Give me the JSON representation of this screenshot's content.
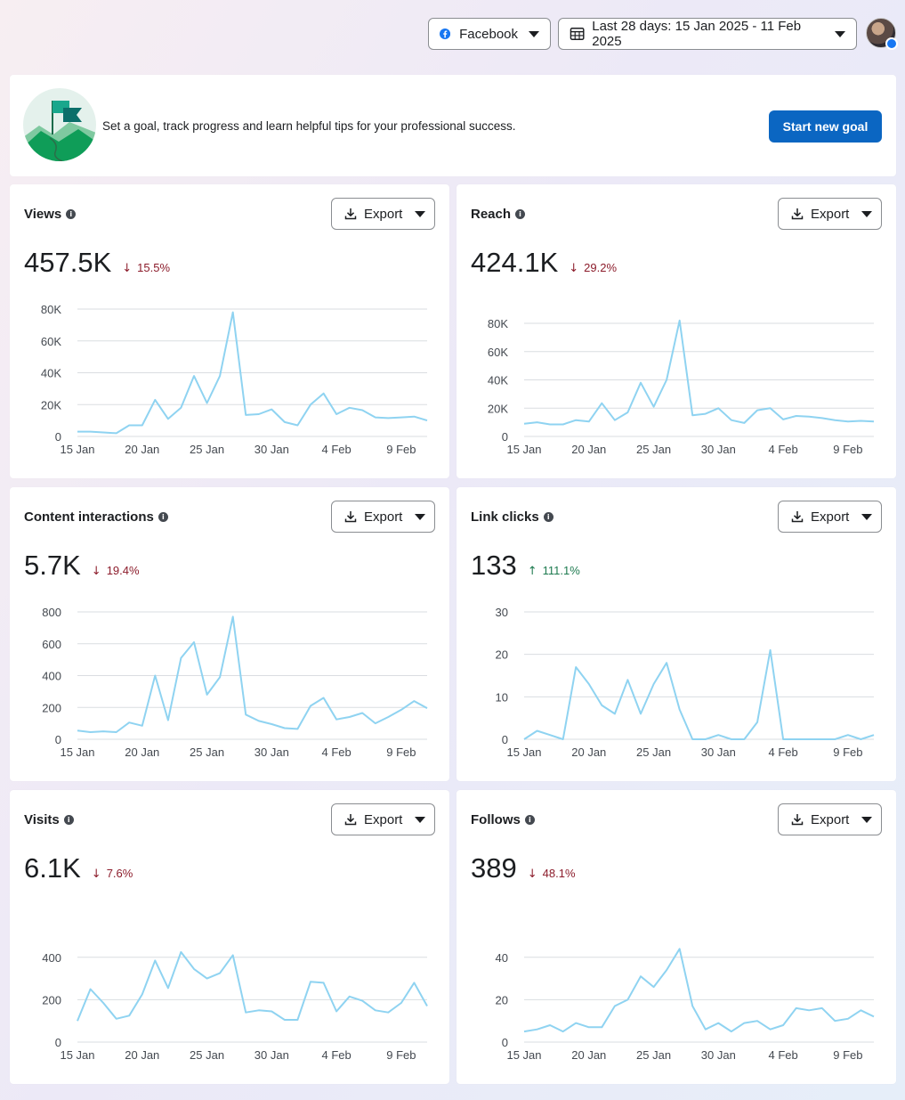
{
  "header": {
    "platform_label": "Facebook",
    "date_range_label": "Last 28 days: 15 Jan 2025 - 11 Feb 2025"
  },
  "goal": {
    "text": "Set a goal, track progress and learn helpful tips for your professional success.",
    "button_label": "Start new goal"
  },
  "export_label": "Export",
  "colors": {
    "line": "#8fd3f1",
    "grid": "#dadde1",
    "accent": "#0b66c2",
    "down": "#8c1c2b",
    "up": "#1d7a4f"
  },
  "metrics": [
    {
      "key": "views",
      "title": "Views",
      "value": "457.5K",
      "delta": "15.5%",
      "direction": "down"
    },
    {
      "key": "reach",
      "title": "Reach",
      "value": "424.1K",
      "delta": "29.2%",
      "direction": "down"
    },
    {
      "key": "interactions",
      "title": "Content interactions",
      "value": "5.7K",
      "delta": "19.4%",
      "direction": "down"
    },
    {
      "key": "link_clicks",
      "title": "Link clicks",
      "value": "133",
      "delta": "111.1%",
      "direction": "up"
    },
    {
      "key": "visits",
      "title": "Visits",
      "value": "6.1K",
      "delta": "7.6%",
      "direction": "down"
    },
    {
      "key": "follows",
      "title": "Follows",
      "value": "389",
      "delta": "48.1%",
      "direction": "down"
    }
  ],
  "chart_data": [
    {
      "type": "line",
      "title": "Views",
      "x_ticks": [
        "15 Jan",
        "20 Jan",
        "25 Jan",
        "30 Jan",
        "4 Feb",
        "9 Feb"
      ],
      "y_ticks": [
        "0",
        "20K",
        "40K",
        "60K",
        "80K"
      ],
      "ylim": [
        0,
        80000
      ],
      "values": [
        3000,
        3000,
        2500,
        2000,
        7000,
        7000,
        23000,
        11000,
        18000,
        38000,
        21000,
        38000,
        78000,
        13500,
        14000,
        17000,
        9000,
        7000,
        20000,
        27000,
        14000,
        18000,
        16500,
        12000,
        11500,
        12000,
        12500,
        10000
      ]
    },
    {
      "type": "line",
      "title": "Reach",
      "x_ticks": [
        "15 Jan",
        "20 Jan",
        "25 Jan",
        "30 Jan",
        "4 Feb",
        "9 Feb"
      ],
      "y_ticks": [
        "0",
        "20K",
        "40K",
        "60K",
        "80K"
      ],
      "ylim": [
        0,
        80000
      ],
      "values": [
        9000,
        10000,
        8500,
        8500,
        11500,
        10500,
        23500,
        11500,
        17000,
        38000,
        21000,
        40000,
        82000,
        15000,
        16000,
        20000,
        11500,
        9500,
        18500,
        20000,
        12000,
        14500,
        14000,
        13000,
        11500,
        10500,
        11000,
        10500
      ]
    },
    {
      "type": "line",
      "title": "Content interactions",
      "x_ticks": [
        "15 Jan",
        "20 Jan",
        "25 Jan",
        "30 Jan",
        "4 Feb",
        "9 Feb"
      ],
      "y_ticks": [
        "0",
        "200",
        "400",
        "600",
        "800"
      ],
      "ylim": [
        0,
        800
      ],
      "values": [
        55,
        45,
        50,
        45,
        105,
        85,
        400,
        120,
        510,
        610,
        280,
        390,
        770,
        155,
        115,
        95,
        70,
        65,
        210,
        260,
        125,
        140,
        165,
        100,
        140,
        185,
        240,
        195
      ]
    },
    {
      "type": "line",
      "title": "Link clicks",
      "x_ticks": [
        "15 Jan",
        "20 Jan",
        "25 Jan",
        "30 Jan",
        "4 Feb",
        "9 Feb"
      ],
      "y_ticks": [
        "0",
        "10",
        "20",
        "30"
      ],
      "ylim": [
        0,
        30
      ],
      "values": [
        0,
        2,
        1,
        0,
        17,
        13,
        8,
        6,
        14,
        6,
        13,
        18,
        7,
        0,
        0,
        1,
        0,
        0,
        4,
        21,
        0,
        0,
        0,
        0,
        0,
        1,
        0,
        1
      ]
    },
    {
      "type": "line",
      "title": "Visits",
      "x_ticks": [
        "15 Jan",
        "20 Jan",
        "25 Jan",
        "30 Jan",
        "4 Feb",
        "9 Feb"
      ],
      "y_ticks": [
        "0",
        "200",
        "400"
      ],
      "ylim": [
        0,
        500
      ],
      "values": [
        100,
        250,
        185,
        110,
        125,
        225,
        385,
        255,
        425,
        345,
        300,
        325,
        410,
        140,
        150,
        145,
        105,
        105,
        285,
        280,
        145,
        215,
        195,
        150,
        140,
        185,
        280,
        170
      ]
    },
    {
      "type": "line",
      "title": "Follows",
      "x_ticks": [
        "15 Jan",
        "20 Jan",
        "25 Jan",
        "30 Jan",
        "4 Feb",
        "9 Feb"
      ],
      "y_ticks": [
        "0",
        "20",
        "40"
      ],
      "ylim": [
        0,
        50
      ],
      "values": [
        5,
        6,
        8,
        5,
        9,
        7,
        7,
        17,
        20,
        31,
        26,
        34,
        44,
        17,
        6,
        9,
        5,
        9,
        10,
        6,
        8,
        16,
        15,
        16,
        10,
        11,
        15,
        12
      ]
    }
  ]
}
